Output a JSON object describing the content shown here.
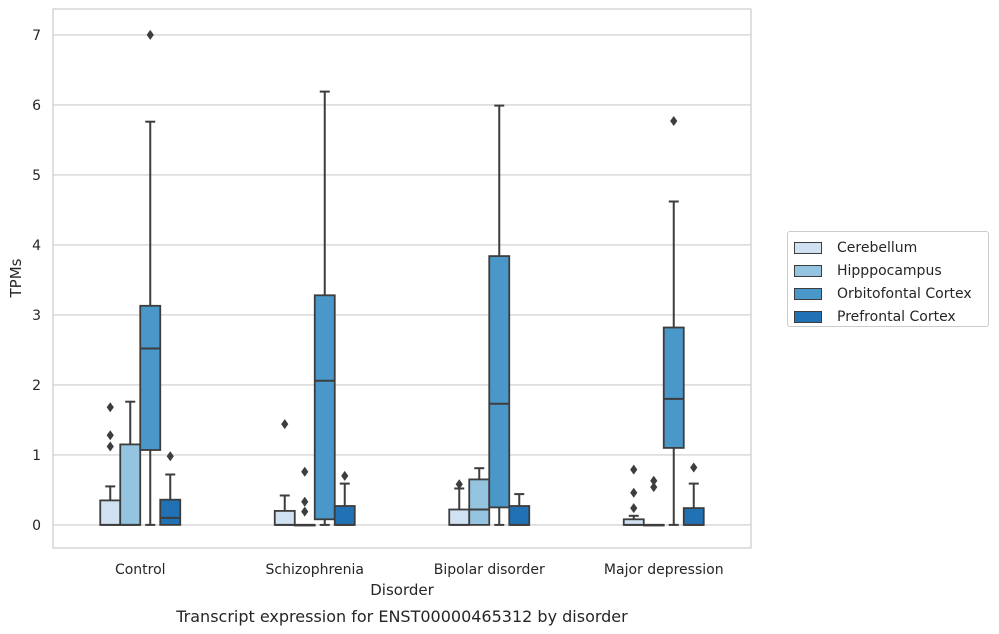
{
  "chart_data": {
    "type": "box",
    "title": "",
    "caption": "Transcript expression for ENST00000465312 by disorder",
    "xlabel": "Disorder",
    "ylabel": "TPMs",
    "ylim": [
      -0.33,
      7.37
    ],
    "yticks": [
      "0",
      "1",
      "2",
      "3",
      "4",
      "5",
      "6",
      "7"
    ],
    "grid": "horizontal",
    "legend_position": "right",
    "categories": [
      "Control",
      "Schizophrenia",
      "Bipolar disorder",
      "Major depression"
    ],
    "series": [
      {
        "name": "Cerebellum",
        "color": "#d0e1f2",
        "boxes": [
          {
            "q1": 0,
            "median": 0,
            "q3": 0.35,
            "whisker_low": 0,
            "whisker_high": 0.55,
            "outliers": [
              1.12,
              1.28,
              1.68
            ]
          },
          {
            "q1": 0,
            "median": 0,
            "q3": 0.2,
            "whisker_low": 0,
            "whisker_high": 0.42,
            "outliers": [
              1.44
            ]
          },
          {
            "q1": 0,
            "median": 0,
            "q3": 0.22,
            "whisker_low": 0,
            "whisker_high": 0.52,
            "outliers": [
              0.58
            ]
          },
          {
            "q1": 0,
            "median": 0,
            "q3": 0.08,
            "whisker_low": 0,
            "whisker_high": 0.13,
            "outliers": [
              0.24,
              0.46,
              0.79
            ]
          }
        ]
      },
      {
        "name": "Hipppocampus",
        "color": "#94c4df",
        "boxes": [
          {
            "q1": 0,
            "median": 0,
            "q3": 1.15,
            "whisker_low": 0,
            "whisker_high": 1.76,
            "outliers": []
          },
          {
            "q1": 0,
            "median": 0,
            "q3": 0,
            "whisker_low": 0,
            "whisker_high": 0,
            "outliers": [
              0.19,
              0.33,
              0.76
            ]
          },
          {
            "q1": 0,
            "median": 0.22,
            "q3": 0.65,
            "whisker_low": 0,
            "whisker_high": 0.81,
            "outliers": []
          },
          {
            "q1": 0,
            "median": 0,
            "q3": 0,
            "whisker_low": 0,
            "whisker_high": 0,
            "outliers": [
              0.54,
              0.63
            ]
          }
        ]
      },
      {
        "name": "Orbitofontal Cortex",
        "color": "#4a98c9",
        "boxes": [
          {
            "q1": 1.07,
            "median": 2.52,
            "q3": 3.13,
            "whisker_low": 0,
            "whisker_high": 5.76,
            "outliers": [
              7.0
            ]
          },
          {
            "q1": 0.08,
            "median": 2.06,
            "q3": 3.28,
            "whisker_low": 0,
            "whisker_high": 6.19,
            "outliers": []
          },
          {
            "q1": 0.25,
            "median": 1.73,
            "q3": 3.84,
            "whisker_low": 0,
            "whisker_high": 5.99,
            "outliers": []
          },
          {
            "q1": 1.1,
            "median": 1.8,
            "q3": 2.82,
            "whisker_low": 0,
            "whisker_high": 4.62,
            "outliers": [
              5.77
            ]
          }
        ]
      },
      {
        "name": "Prefrontal Cortex",
        "color": "#2171b5",
        "boxes": [
          {
            "q1": 0,
            "median": 0.1,
            "q3": 0.36,
            "whisker_low": 0,
            "whisker_high": 0.72,
            "outliers": [
              0.98
            ]
          },
          {
            "q1": 0,
            "median": 0,
            "q3": 0.27,
            "whisker_low": 0,
            "whisker_high": 0.59,
            "outliers": [
              0.7
            ]
          },
          {
            "q1": 0,
            "median": 0,
            "q3": 0.27,
            "whisker_low": 0,
            "whisker_high": 0.44,
            "outliers": []
          },
          {
            "q1": 0,
            "median": 0,
            "q3": 0.24,
            "whisker_low": 0,
            "whisker_high": 0.59,
            "outliers": [
              0.82
            ]
          }
        ]
      }
    ]
  },
  "legend": {
    "items": [
      {
        "label": "Cerebellum",
        "color": "#d0e1f2"
      },
      {
        "label": "Hipppocampus",
        "color": "#94c4df"
      },
      {
        "label": "Orbitofontal Cortex",
        "color": "#4a98c9"
      },
      {
        "label": "Prefrontal Cortex",
        "color": "#2171b5"
      }
    ]
  }
}
